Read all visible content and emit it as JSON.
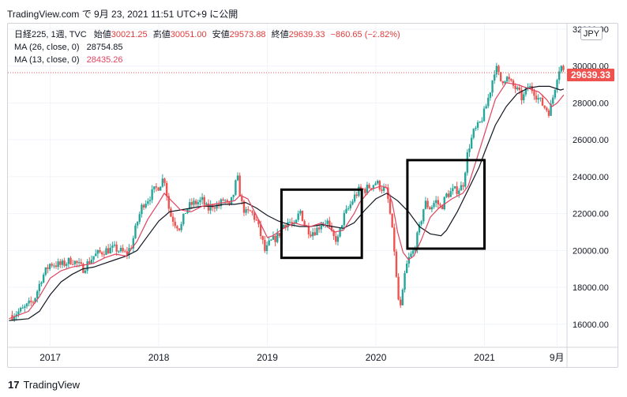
{
  "header": {
    "text": "TradingView.com で 9月 23, 2021 11:51 UTC+9 に公開"
  },
  "legend": {
    "symbol": "日経225, 1週, TVC",
    "open_label": "始値",
    "open": "30021.25",
    "high_label": "高値",
    "high": "30051.00",
    "low_label": "安値",
    "low": "29573.88",
    "close_label": "終値",
    "close": "29639.33",
    "change": "−860.65 (−2.82%)",
    "ma26_label": "MA (26, close, 0)",
    "ma26_value": "28754.85",
    "ma13_label": "MA (13, close, 0)",
    "ma13_value": "28435.26"
  },
  "price_badge": "29639.33",
  "currency_badge": "JPY",
  "footer": {
    "brand": "TradingView",
    "logo_glyph": "17"
  },
  "colors": {
    "up": "#26a69a",
    "down": "#ef5350",
    "ma26": "#131722",
    "ma13": "#e0435f",
    "grid": "#f0f3fa",
    "current_price_line": "#ef5350",
    "box": "#000000"
  },
  "chart_data": {
    "type": "candlestick",
    "interval": "weekly",
    "y_axis_ticks": [
      "16000.00",
      "18000.00",
      "20000.00",
      "22000.00",
      "24000.00",
      "26000.00",
      "28000.00",
      "30000.00",
      "32000.00"
    ],
    "y_tick_values": [
      16000,
      18000,
      20000,
      22000,
      24000,
      26000,
      28000,
      30000,
      32000
    ],
    "x_axis_ticks": [
      "2017",
      "2018",
      "2019",
      "2020",
      "2021",
      "9月"
    ],
    "x_tick_values": [
      2017.0,
      2018.0,
      2019.0,
      2020.0,
      2021.0,
      2021.667
    ],
    "x_range": [
      2016.61,
      2021.76
    ],
    "y_range": [
      14750,
      32300
    ],
    "current_price": 29639.33,
    "close_series": [
      [
        2016.65,
        16500
      ],
      [
        2016.75,
        16800
      ],
      [
        2016.85,
        17300
      ],
      [
        2016.92,
        18500
      ],
      [
        2017.0,
        19300
      ],
      [
        2017.1,
        19200
      ],
      [
        2017.2,
        19500
      ],
      [
        2017.3,
        19000
      ],
      [
        2017.4,
        19700
      ],
      [
        2017.5,
        20000
      ],
      [
        2017.6,
        20100
      ],
      [
        2017.7,
        19800
      ],
      [
        2017.75,
        20300
      ],
      [
        2017.8,
        21500
      ],
      [
        2017.85,
        22500
      ],
      [
        2017.9,
        22800
      ],
      [
        2017.95,
        23200
      ],
      [
        2018.0,
        23500
      ],
      [
        2018.05,
        24000
      ],
      [
        2018.1,
        22000
      ],
      [
        2018.15,
        21500
      ],
      [
        2018.2,
        21200
      ],
      [
        2018.25,
        22200
      ],
      [
        2018.3,
        22500
      ],
      [
        2018.4,
        22700
      ],
      [
        2018.45,
        22200
      ],
      [
        2018.5,
        22500
      ],
      [
        2018.55,
        22400
      ],
      [
        2018.6,
        22800
      ],
      [
        2018.65,
        22300
      ],
      [
        2018.7,
        23300
      ],
      [
        2018.72,
        24100
      ],
      [
        2018.76,
        22600
      ],
      [
        2018.8,
        22000
      ],
      [
        2018.85,
        22100
      ],
      [
        2018.9,
        21600
      ],
      [
        2018.95,
        20600
      ],
      [
        2018.98,
        19900
      ],
      [
        2019.02,
        20400
      ],
      [
        2019.1,
        20800
      ],
      [
        2019.15,
        21400
      ],
      [
        2019.2,
        21600
      ],
      [
        2019.25,
        21200
      ],
      [
        2019.3,
        22200
      ],
      [
        2019.35,
        21300
      ],
      [
        2019.4,
        21000
      ],
      [
        2019.45,
        21100
      ],
      [
        2019.5,
        21500
      ],
      [
        2019.55,
        21600
      ],
      [
        2019.6,
        20700
      ],
      [
        2019.65,
        20600
      ],
      [
        2019.7,
        21800
      ],
      [
        2019.75,
        22300
      ],
      [
        2019.8,
        22900
      ],
      [
        2019.85,
        23300
      ],
      [
        2019.9,
        23300
      ],
      [
        2019.95,
        23500
      ],
      [
        2020.0,
        23700
      ],
      [
        2020.05,
        23400
      ],
      [
        2020.1,
        23200
      ],
      [
        2020.13,
        22000
      ],
      [
        2020.17,
        20000
      ],
      [
        2020.2,
        17500
      ],
      [
        2020.23,
        16800
      ],
      [
        2020.27,
        18900
      ],
      [
        2020.3,
        19500
      ],
      [
        2020.35,
        20000
      ],
      [
        2020.4,
        21200
      ],
      [
        2020.45,
        22600
      ],
      [
        2020.5,
        22300
      ],
      [
        2020.55,
        22700
      ],
      [
        2020.6,
        22300
      ],
      [
        2020.65,
        23000
      ],
      [
        2020.7,
        23200
      ],
      [
        2020.75,
        23300
      ],
      [
        2020.8,
        23500
      ],
      [
        2020.85,
        25500
      ],
      [
        2020.9,
        26400
      ],
      [
        2020.95,
        26800
      ],
      [
        2021.0,
        27500
      ],
      [
        2021.05,
        28600
      ],
      [
        2021.1,
        30000
      ],
      [
        2021.15,
        29200
      ],
      [
        2021.2,
        29400
      ],
      [
        2021.25,
        29000
      ],
      [
        2021.3,
        28700
      ],
      [
        2021.35,
        28200
      ],
      [
        2021.4,
        28900
      ],
      [
        2021.45,
        28700
      ],
      [
        2021.5,
        28200
      ],
      [
        2021.55,
        27800
      ],
      [
        2021.6,
        27500
      ],
      [
        2021.63,
        28300
      ],
      [
        2021.67,
        29500
      ],
      [
        2021.7,
        30100
      ],
      [
        2021.73,
        29639
      ]
    ],
    "ma13_series": [
      [
        2016.62,
        16300
      ],
      [
        2016.8,
        16700
      ],
      [
        2016.9,
        17500
      ],
      [
        2017.0,
        18500
      ],
      [
        2017.1,
        18900
      ],
      [
        2017.2,
        19100
      ],
      [
        2017.3,
        19200
      ],
      [
        2017.4,
        19300
      ],
      [
        2017.5,
        19600
      ],
      [
        2017.6,
        19800
      ],
      [
        2017.7,
        19700
      ],
      [
        2017.8,
        20500
      ],
      [
        2017.9,
        21700
      ],
      [
        2018.0,
        22600
      ],
      [
        2018.05,
        23100
      ],
      [
        2018.1,
        22800
      ],
      [
        2018.2,
        22200
      ],
      [
        2018.3,
        22100
      ],
      [
        2018.4,
        22400
      ],
      [
        2018.5,
        22500
      ],
      [
        2018.6,
        22600
      ],
      [
        2018.7,
        22700
      ],
      [
        2018.75,
        23000
      ],
      [
        2018.82,
        22800
      ],
      [
        2018.9,
        21900
      ],
      [
        2018.95,
        21300
      ],
      [
        2019.0,
        20700
      ],
      [
        2019.05,
        20800
      ],
      [
        2019.15,
        21200
      ],
      [
        2019.25,
        21500
      ],
      [
        2019.3,
        21400
      ],
      [
        2019.4,
        21300
      ],
      [
        2019.5,
        21500
      ],
      [
        2019.55,
        21300
      ],
      [
        2019.62,
        21000
      ],
      [
        2019.7,
        21100
      ],
      [
        2019.8,
        22000
      ],
      [
        2019.85,
        22600
      ],
      [
        2019.95,
        23300
      ],
      [
        2020.05,
        23500
      ],
      [
        2020.1,
        23400
      ],
      [
        2020.15,
        22600
      ],
      [
        2020.2,
        21000
      ],
      [
        2020.25,
        19900
      ],
      [
        2020.3,
        19500
      ],
      [
        2020.35,
        19700
      ],
      [
        2020.42,
        20600
      ],
      [
        2020.5,
        21800
      ],
      [
        2020.58,
        22300
      ],
      [
        2020.7,
        22800
      ],
      [
        2020.8,
        23100
      ],
      [
        2020.85,
        23500
      ],
      [
        2020.92,
        24800
      ],
      [
        2021.0,
        26300
      ],
      [
        2021.1,
        28200
      ],
      [
        2021.2,
        29100
      ],
      [
        2021.3,
        29000
      ],
      [
        2021.4,
        28800
      ],
      [
        2021.5,
        28600
      ],
      [
        2021.57,
        28200
      ],
      [
        2021.62,
        27800
      ],
      [
        2021.67,
        28000
      ],
      [
        2021.73,
        28435
      ]
    ],
    "ma26_series": [
      [
        2016.62,
        16200
      ],
      [
        2016.8,
        16300
      ],
      [
        2016.9,
        16700
      ],
      [
        2017.0,
        17600
      ],
      [
        2017.1,
        18300
      ],
      [
        2017.2,
        18700
      ],
      [
        2017.3,
        19000
      ],
      [
        2017.4,
        19100
      ],
      [
        2017.5,
        19300
      ],
      [
        2017.6,
        19500
      ],
      [
        2017.7,
        19700
      ],
      [
        2017.8,
        20000
      ],
      [
        2017.9,
        20800
      ],
      [
        2018.0,
        21600
      ],
      [
        2018.1,
        22100
      ],
      [
        2018.2,
        22200
      ],
      [
        2018.3,
        22300
      ],
      [
        2018.4,
        22400
      ],
      [
        2018.5,
        22400
      ],
      [
        2018.6,
        22500
      ],
      [
        2018.7,
        22500
      ],
      [
        2018.8,
        22600
      ],
      [
        2018.9,
        22300
      ],
      [
        2019.0,
        21900
      ],
      [
        2019.1,
        21600
      ],
      [
        2019.2,
        21400
      ],
      [
        2019.3,
        21300
      ],
      [
        2019.4,
        21300
      ],
      [
        2019.5,
        21400
      ],
      [
        2019.6,
        21300
      ],
      [
        2019.7,
        21200
      ],
      [
        2019.8,
        21500
      ],
      [
        2019.9,
        22200
      ],
      [
        2020.0,
        22800
      ],
      [
        2020.1,
        23100
      ],
      [
        2020.2,
        22700
      ],
      [
        2020.3,
        22100
      ],
      [
        2020.4,
        21300
      ],
      [
        2020.5,
        20900
      ],
      [
        2020.6,
        20800
      ],
      [
        2020.65,
        21100
      ],
      [
        2020.75,
        22100
      ],
      [
        2020.85,
        23300
      ],
      [
        2020.95,
        24500
      ],
      [
        2021.0,
        25300
      ],
      [
        2021.1,
        26800
      ],
      [
        2021.2,
        27800
      ],
      [
        2021.3,
        28500
      ],
      [
        2021.4,
        28800
      ],
      [
        2021.5,
        28900
      ],
      [
        2021.6,
        28900
      ],
      [
        2021.7,
        28700
      ],
      [
        2021.73,
        28755
      ]
    ],
    "annotation_boxes": [
      {
        "x0": 2019.13,
        "x1": 2019.87,
        "y0": 19600,
        "y1": 23300
      },
      {
        "x0": 2020.29,
        "x1": 2021.0,
        "y0": 20100,
        "y1": 24900
      }
    ]
  }
}
